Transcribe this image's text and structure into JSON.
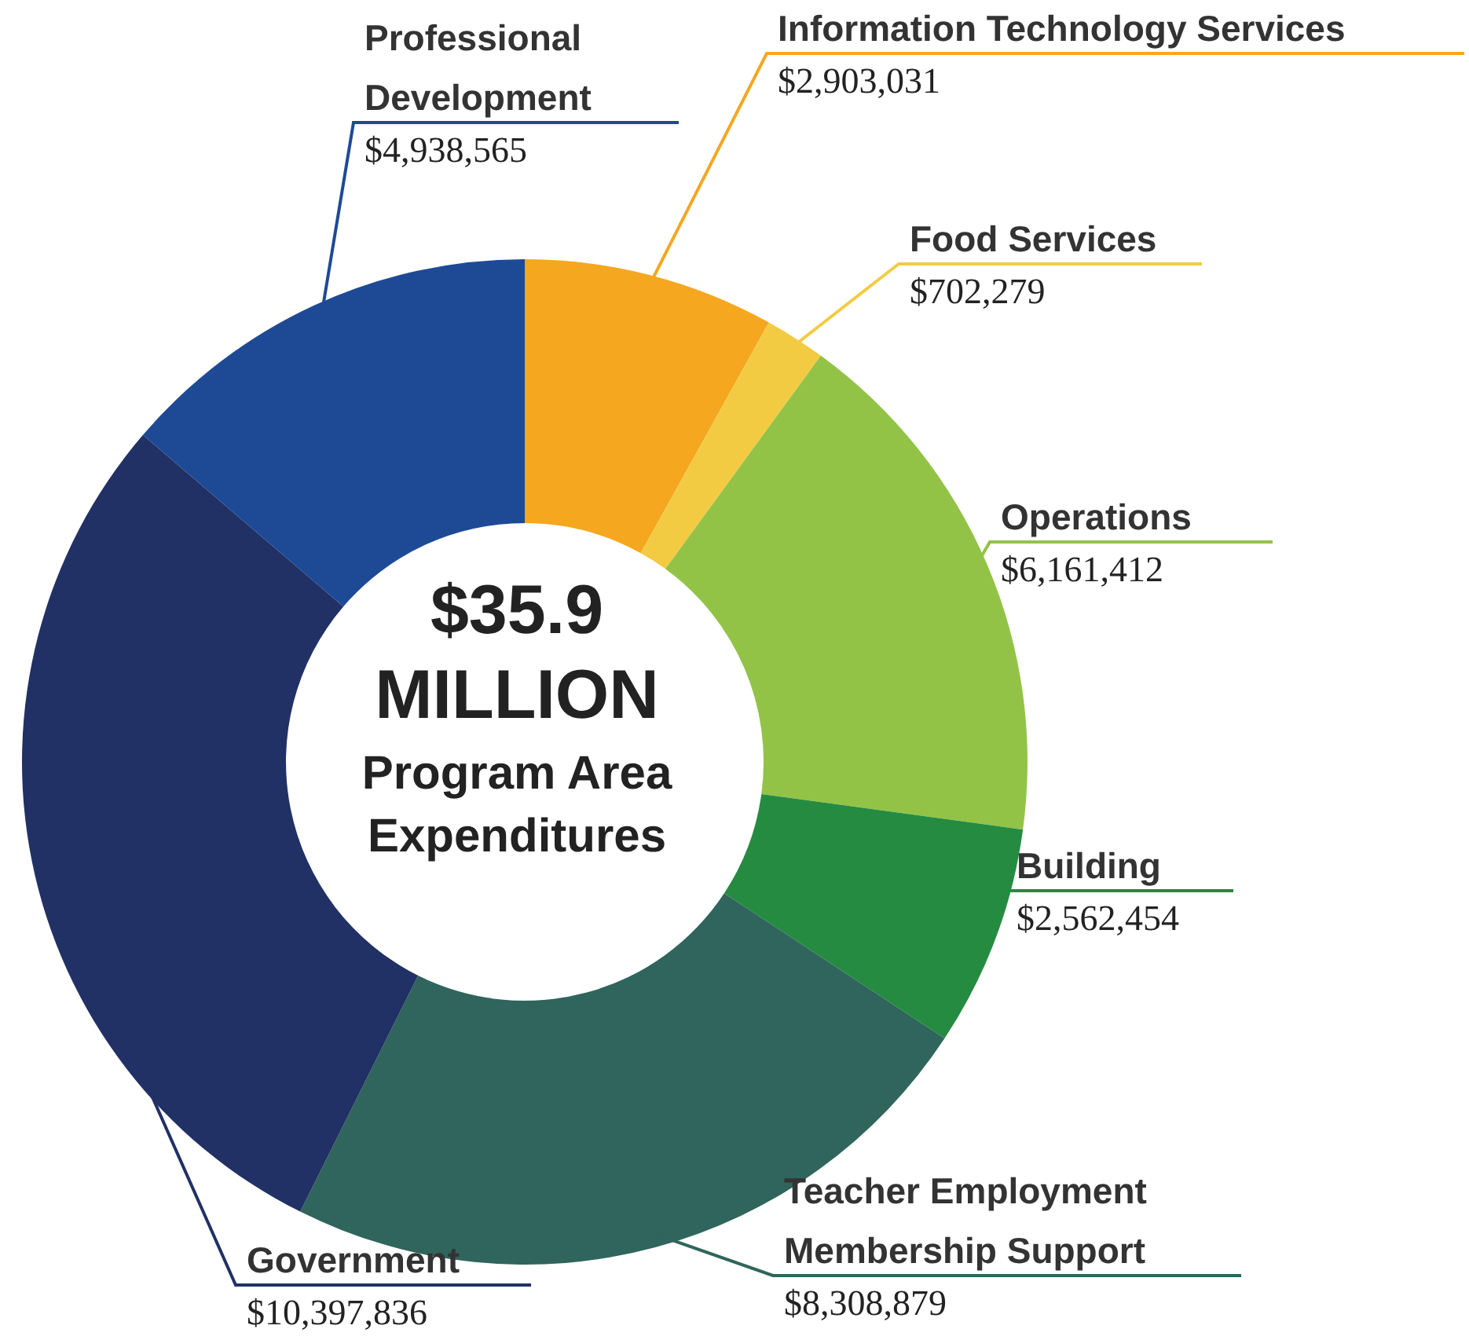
{
  "chart_data": {
    "type": "donut",
    "title": "$35.9 MILLION",
    "subtitle": "Program Area Expenditures",
    "categories": [
      "Information Technology Services",
      "Food Services",
      "Operations",
      "Building",
      "Teacher Employment Membership Support",
      "Government",
      "Professional Development"
    ],
    "values": [
      2903031,
      702279,
      6161412,
      2562454,
      8308879,
      10397836,
      4938565
    ],
    "colors": [
      "#f5a71f",
      "#f3cb43",
      "#92c347",
      "#258b41",
      "#2f655c",
      "#213165",
      "#1e4a95"
    ],
    "value_labels": [
      "$2,903,031",
      "$702,279",
      "$6,161,412",
      "$2,562,454",
      "$8,308,879",
      "$10,397,836",
      "$4,938,565"
    ]
  }
}
